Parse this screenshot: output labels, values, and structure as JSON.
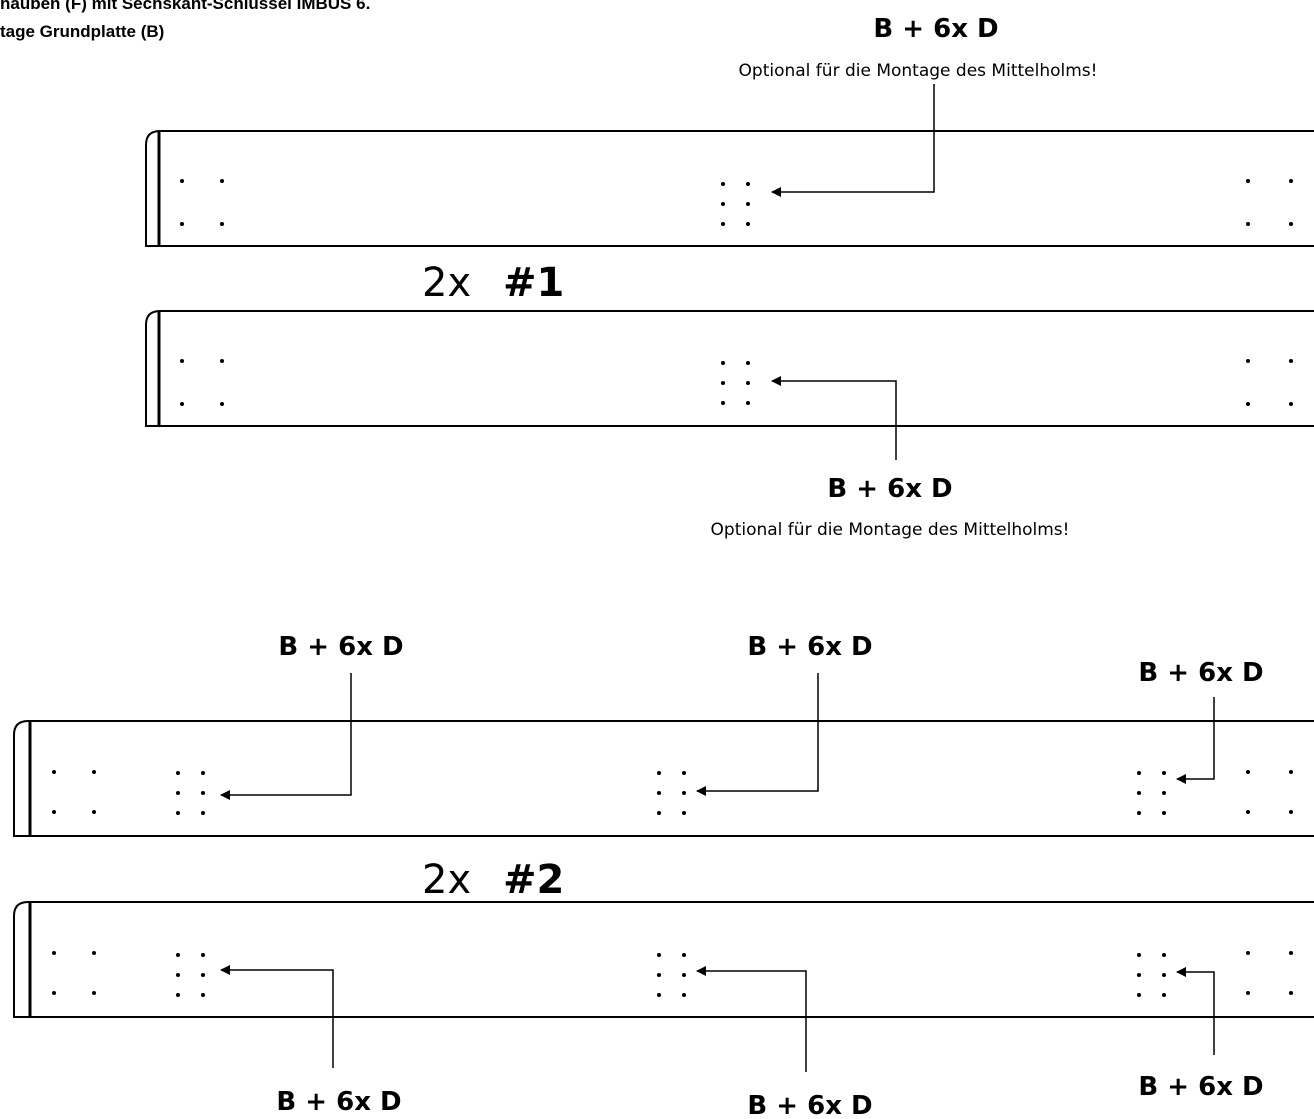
{
  "header": {
    "line1": "hauben (F) mit Sechskant-Schlüssel IMBUS 6.",
    "line2": "tage Grundplatte (B)"
  },
  "section1": {
    "quantity": "2x",
    "part": "#1",
    "top_label": "B + 6x D",
    "top_note": "Optional für die Montage des Mittelholms!",
    "bottom_label": "B + 6x D",
    "bottom_note": "Optional für die Montage des Mittelholms!"
  },
  "section2": {
    "quantity": "2x",
    "part": "#2",
    "top_labels": [
      "B + 6x D",
      "B + 6x D",
      "B + 6x D"
    ],
    "bottom_labels": [
      "B + 6x D",
      "B + 6x D",
      "B + 6x D"
    ]
  },
  "colors": {
    "line": "#000000",
    "background": "#ffffff"
  }
}
